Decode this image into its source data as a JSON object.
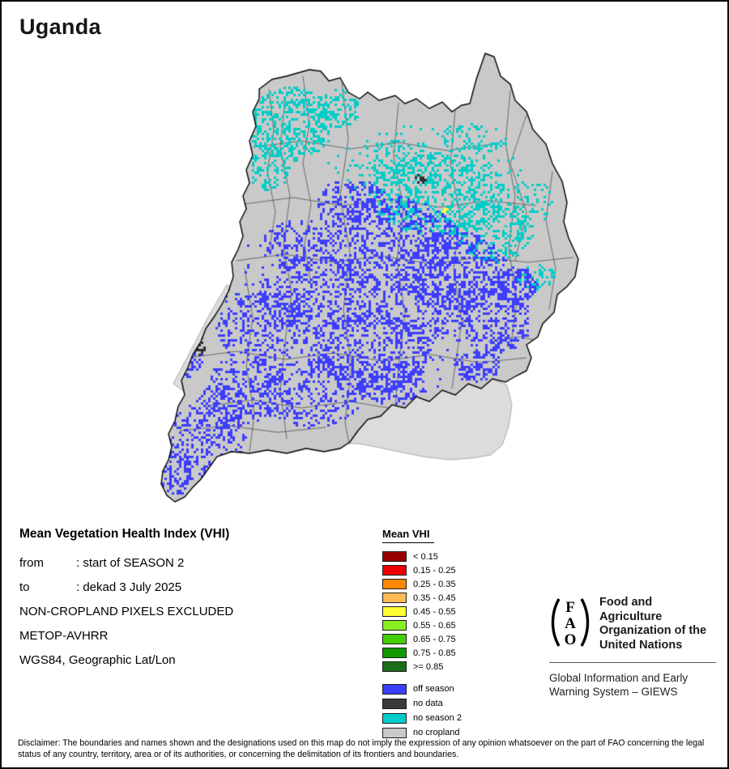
{
  "page": {
    "title": "Uganda"
  },
  "info": {
    "heading": "Mean Vegetation Health Index (VHI)",
    "from": {
      "label": "from",
      "value": ": start of SEASON 2"
    },
    "to": {
      "label": "to",
      "value": ": dekad 3 July 2025"
    },
    "line1": "NON-CROPLAND PIXELS EXCLUDED",
    "line2": "METOP-AVHRR",
    "line3": "WGS84, Geographic Lat/Lon"
  },
  "legend": {
    "title": "Mean VHI",
    "vhi_classes": [
      {
        "label": "< 0.15",
        "color": "#990000"
      },
      {
        "label": "0.15 - 0.25",
        "color": "#ee0000"
      },
      {
        "label": "0.25 - 0.35",
        "color": "#ff8800"
      },
      {
        "label": "0.35 - 0.45",
        "color": "#ffbb55"
      },
      {
        "label": "0.45 - 0.55",
        "color": "#ffff33"
      },
      {
        "label": "0.55 - 0.65",
        "color": "#88ee22"
      },
      {
        "label": "0.65 - 0.75",
        "color": "#44cc00"
      },
      {
        "label": "0.75 - 0.85",
        "color": "#119900"
      },
      {
        "label": ">= 0.85",
        "color": "#1a6e1a"
      }
    ],
    "categories": [
      {
        "label": "off season",
        "color": "#3d3dff"
      },
      {
        "label": "no data",
        "color": "#3a3a3a"
      },
      {
        "label": "no season 2",
        "color": "#00cdc8"
      },
      {
        "label": "no cropland",
        "color": "#c9c9c9"
      }
    ]
  },
  "map": {
    "region_label": "Uganda",
    "colors": {
      "no_cropland": "#c9c9c9",
      "off_season": "#3d3dff",
      "no_season2": "#00cdc8",
      "no_data": "#2e2e2e",
      "vhi_mid": "#ffff33",
      "lake": "#dcdcdc",
      "boundary": "#000000",
      "district_line": "#404040"
    }
  },
  "fao": {
    "logo_chars": [
      "F",
      "A",
      "O"
    ],
    "org_lines": [
      "Food and Agriculture",
      "Organization of the",
      "United Nations"
    ],
    "giews_lines": [
      "Global Information and Early",
      "Warning System – GIEWS"
    ]
  },
  "disclaimer": "Disclaimer: The boundaries and names shown and the designations used on this map do not imply the expression of any opinion whatsoever on the part of FAO concerning the legal status of any country, territory, area or of its authorities, or concerning the delimitation of its frontiers and boundaries."
}
